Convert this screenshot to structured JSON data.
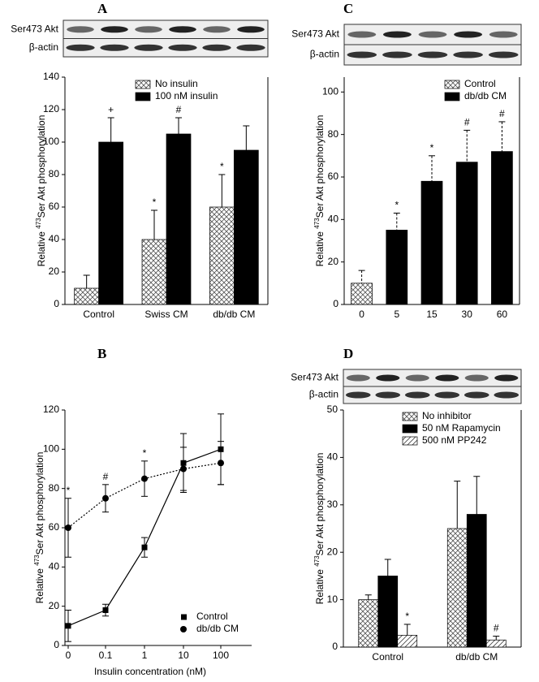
{
  "chart_data": [
    {
      "panel_label": "A",
      "type": "bar",
      "blot_labels": [
        "Ser473 Akt",
        "β-actin"
      ],
      "ylabel": {
        "prefix": "Relative ",
        "sup": "473",
        "suffix": "Ser Akt phosphorylation"
      },
      "categories": [
        "Control",
        "Swiss CM",
        "db/db CM"
      ],
      "series": [
        {
          "name": "No insulin",
          "fill": "crosshatch",
          "values": [
            10,
            40,
            60
          ],
          "errors": [
            8,
            18,
            20
          ],
          "markers": [
            null,
            "*",
            "*"
          ]
        },
        {
          "name": "100 nM insulin",
          "fill": "#000000",
          "values": [
            100,
            105,
            95
          ],
          "errors": [
            15,
            10,
            15
          ],
          "markers": [
            "+",
            "#",
            null
          ]
        }
      ],
      "ylim": [
        0,
        140
      ],
      "yticks": [
        0,
        20,
        40,
        60,
        80,
        100,
        120,
        140
      ]
    },
    {
      "panel_label": "B",
      "type": "line",
      "xlabel": "Insulin concentration (nM)",
      "ylabel": {
        "prefix": "Relative ",
        "sup": "473",
        "suffix": "Ser Akt phosphorylation"
      },
      "categories": [
        "0",
        "0.1",
        "1",
        "10",
        "100"
      ],
      "series": [
        {
          "name": "Control",
          "color": "#000000",
          "marker": "square",
          "dash": "solid",
          "values": [
            10,
            18,
            50,
            93,
            100
          ],
          "errors": [
            8,
            3,
            5,
            15,
            18
          ],
          "markers": [
            null,
            null,
            null,
            null,
            null
          ]
        },
        {
          "name": "db/db CM",
          "color": "#000000",
          "marker": "circle",
          "dash": "dotted",
          "values": [
            60,
            75,
            85,
            90,
            93
          ],
          "errors": [
            15,
            7,
            9,
            11,
            11
          ],
          "markers": [
            "*",
            "#",
            "*",
            null,
            null
          ]
        }
      ],
      "ylim": [
        0,
        120
      ],
      "yticks": [
        0,
        20,
        40,
        60,
        80,
        100,
        120
      ]
    },
    {
      "panel_label": "C",
      "type": "bar",
      "blot_labels": [
        "Ser473 Akt",
        "β-actin"
      ],
      "ylabel": {
        "prefix": "Relative ",
        "sup": "473",
        "suffix": "Ser Akt phosphorylation"
      },
      "categories": [
        "0",
        "5",
        "15",
        "30",
        "60"
      ],
      "error_style": "dashed",
      "series": [
        {
          "name": "Control",
          "fill": "crosshatch",
          "values": [
            10,
            null,
            null,
            null,
            null
          ],
          "errors": [
            6,
            null,
            null,
            null,
            null
          ],
          "markers": [
            null,
            null,
            null,
            null,
            null
          ]
        },
        {
          "name": "db/db CM",
          "fill": "#000000",
          "values": [
            null,
            35,
            58,
            67,
            72
          ],
          "errors": [
            null,
            8,
            12,
            15,
            14
          ],
          "markers": [
            null,
            "*",
            "*",
            "#",
            "#"
          ]
        }
      ],
      "ylim": [
        0,
        107
      ],
      "yticks": [
        0,
        20,
        40,
        60,
        80,
        100
      ]
    },
    {
      "panel_label": "D",
      "type": "bar",
      "blot_labels": [
        "Ser473 Akt",
        "β-actin"
      ],
      "ylabel": {
        "prefix": "Relative ",
        "sup": "473",
        "suffix": "Ser Akt phosphorylation"
      },
      "categories": [
        "Control",
        "db/db CM"
      ],
      "series": [
        {
          "name": "No inhibitor",
          "fill": "crosshatch",
          "values": [
            10,
            25
          ],
          "errors": [
            1,
            10
          ],
          "markers": [
            null,
            null
          ]
        },
        {
          "name": "50 nM Rapamycin",
          "fill": "#000000",
          "values": [
            15,
            28
          ],
          "errors": [
            3.5,
            8
          ],
          "markers": [
            null,
            null
          ]
        },
        {
          "name": "500 nM PP242",
          "fill": "hatch",
          "values": [
            2.5,
            1.5
          ],
          "errors": [
            2.3,
            0.8
          ],
          "markers": [
            "*",
            "#"
          ]
        }
      ],
      "ylim": [
        0,
        50
      ],
      "yticks": [
        0,
        10,
        20,
        30,
        40,
        50
      ]
    }
  ]
}
